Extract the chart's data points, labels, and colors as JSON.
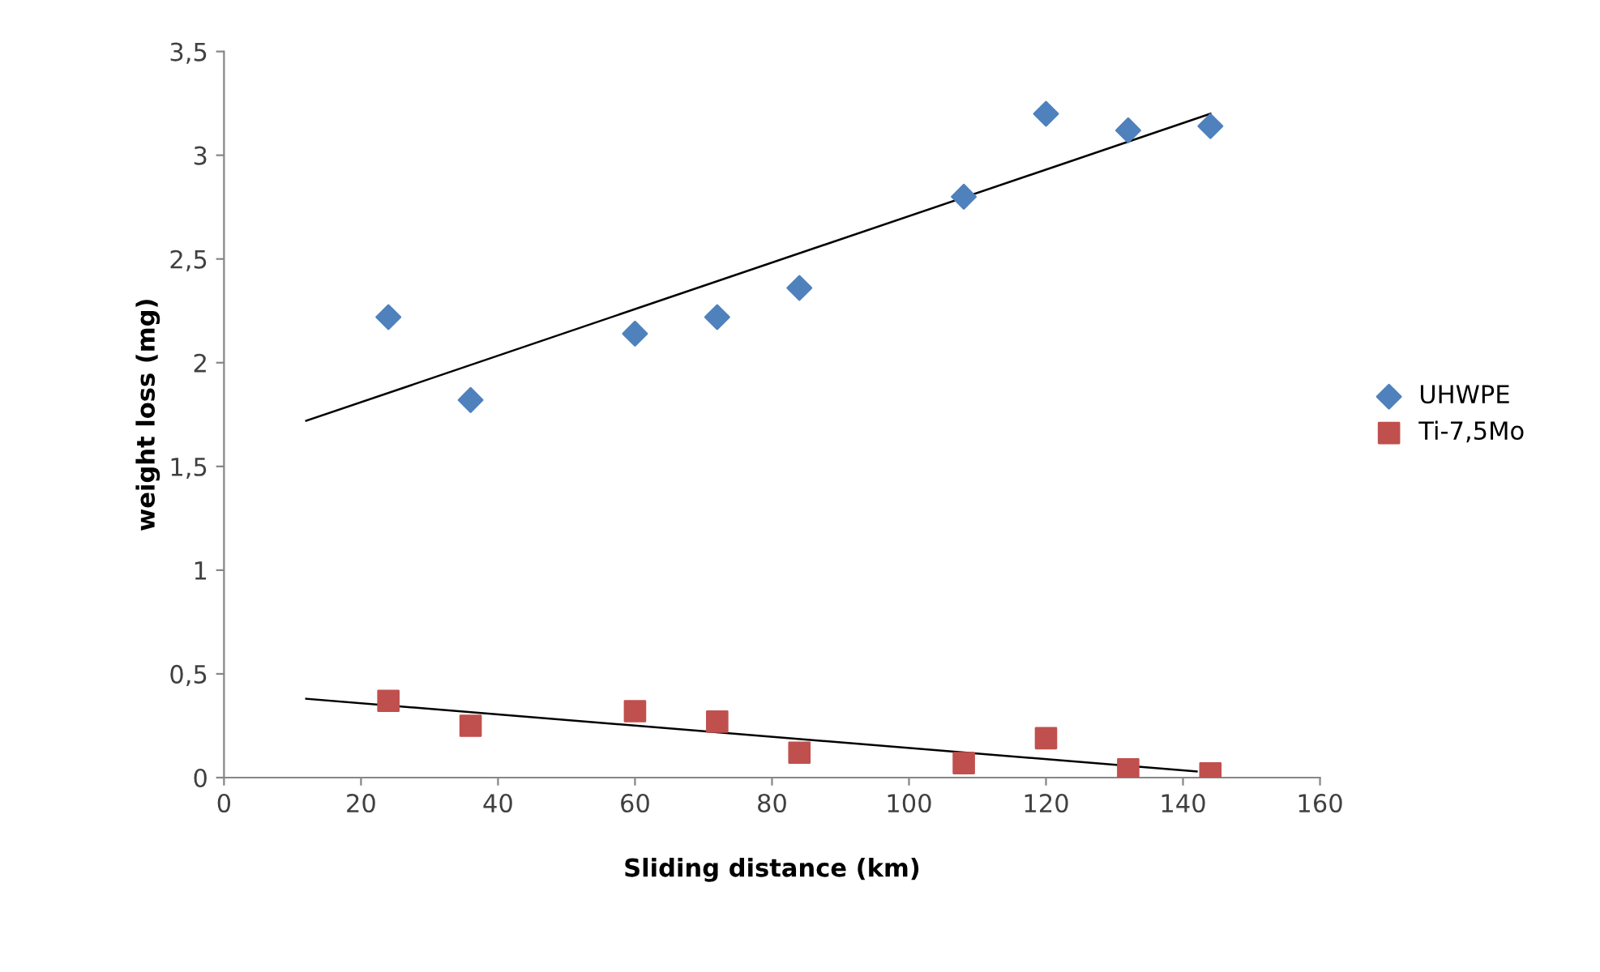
{
  "chart_data": {
    "type": "scatter",
    "xlabel": "Sliding distance (km)",
    "ylabel": "weight loss (mg)",
    "x": [
      24,
      36,
      60,
      72,
      84,
      108,
      120,
      132,
      144
    ],
    "series": [
      {
        "name": "UHWPE",
        "color": "#4f81bd",
        "marker": "diamond",
        "values": [
          2.22,
          1.82,
          2.14,
          2.22,
          2.36,
          2.8,
          3.2,
          3.12,
          3.14
        ]
      },
      {
        "name": "Ti-7,5Mo",
        "color": "#c0504d",
        "marker": "square",
        "values": [
          0.37,
          0.25,
          0.32,
          0.27,
          0.12,
          0.07,
          0.19,
          0.04,
          0.02
        ]
      },
      {
        "type": "line",
        "color": "#000000",
        "x": [
          12,
          144
        ],
        "values": [
          1.72,
          3.2
        ]
      },
      {
        "type": "line",
        "color": "#000000",
        "x": [
          12,
          142
        ],
        "values": [
          0.38,
          0.03
        ]
      }
    ],
    "xlim": [
      0,
      160
    ],
    "xticks": [
      0,
      20,
      40,
      60,
      80,
      100,
      120,
      140,
      160
    ],
    "ylim": [
      0,
      3.5
    ],
    "yticks": [
      0,
      {
        "value": 0.5,
        "label": "0,5"
      },
      1,
      {
        "value": 1.5,
        "label": "1,5"
      },
      2,
      {
        "value": 2.5,
        "label": "2,5"
      },
      3,
      {
        "value": 3.5,
        "label": "3,5"
      }
    ],
    "grid": false,
    "legend": "right"
  }
}
